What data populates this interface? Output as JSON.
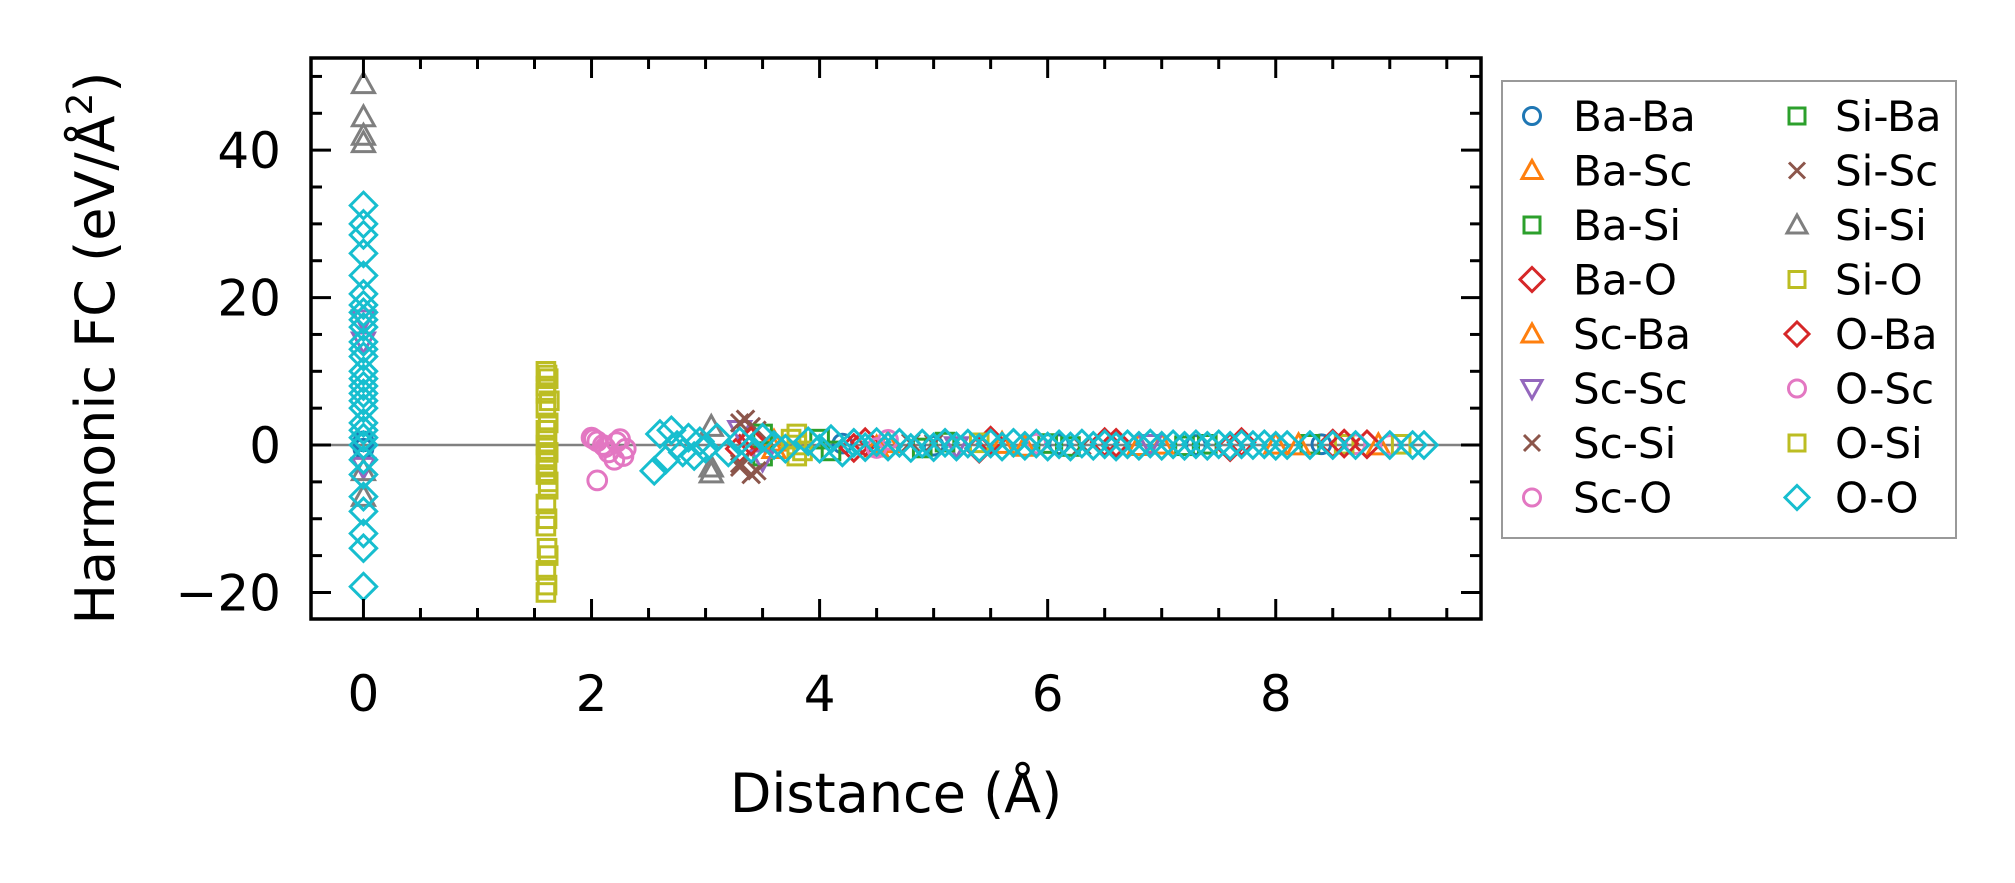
{
  "chart_data": {
    "type": "scatter",
    "title": "",
    "xlabel": "Distance (Å)",
    "ylabel": "Harmonic FC (eV/Å²)",
    "ylabel_parts": {
      "main": "Harmonic FC (eV/Å",
      "sup": "2",
      "close": ")"
    },
    "xlim": [
      -0.46,
      9.8
    ],
    "ylim": [
      -23.6,
      52.5
    ],
    "xticks": [
      0,
      2,
      4,
      6,
      8
    ],
    "xtick_labels": [
      "0",
      "2",
      "4",
      "6",
      "8"
    ],
    "yticks": [
      -20,
      0,
      20,
      40
    ],
    "ytick_labels": [
      "−20",
      "0",
      "20",
      "40"
    ],
    "x_minor_step": 0.5,
    "y_minor_step": 5,
    "grid": false,
    "zero_line": true,
    "legend_position": "outside-right",
    "series": [
      {
        "name": "Ba-Ba",
        "marker": "circle",
        "color": "#1f77b4",
        "points": [
          [
            0,
            0.5
          ],
          [
            0,
            -0.5
          ],
          [
            4.2,
            0.2
          ],
          [
            5.0,
            -0.1
          ],
          [
            6.1,
            0.1
          ],
          [
            7.3,
            0.0
          ],
          [
            8.4,
            0.1
          ]
        ]
      },
      {
        "name": "Ba-Sc",
        "marker": "triangle-up",
        "color": "#ff7f0e",
        "points": [
          [
            3.6,
            0.5
          ],
          [
            4.5,
            -0.3
          ],
          [
            5.6,
            0.2
          ],
          [
            6.8,
            -0.1
          ],
          [
            8.0,
            0.1
          ],
          [
            8.9,
            0.0
          ]
        ]
      },
      {
        "name": "Ba-Si",
        "marker": "square",
        "color": "#2ca02c",
        "points": [
          [
            3.5,
            -1.5
          ],
          [
            4.0,
            0.8
          ],
          [
            4.9,
            -0.4
          ],
          [
            6.0,
            0.2
          ],
          [
            7.2,
            -0.1
          ],
          [
            8.3,
            0.1
          ]
        ]
      },
      {
        "name": "Ba-O",
        "marker": "diamond",
        "color": "#d62728",
        "points": [
          [
            3.3,
            -0.5
          ],
          [
            4.4,
            0.4
          ],
          [
            5.5,
            0.6
          ],
          [
            6.6,
            0.3
          ],
          [
            7.7,
            0.4
          ],
          [
            8.5,
            0.2
          ],
          [
            8.8,
            0.1
          ]
        ]
      },
      {
        "name": "Sc-Ba",
        "marker": "triangle-up",
        "color": "#ff7f0e",
        "points": [
          [
            3.6,
            -0.5
          ],
          [
            4.6,
            0.3
          ],
          [
            5.8,
            -0.2
          ],
          [
            7.0,
            0.1
          ],
          [
            8.2,
            0.0
          ]
        ]
      },
      {
        "name": "Sc-Sc",
        "marker": "triangle-down",
        "color": "#9467bd",
        "points": [
          [
            0,
            14
          ],
          [
            0,
            17
          ],
          [
            0,
            -3
          ],
          [
            3.5,
            -2
          ],
          [
            3.3,
            2
          ],
          [
            5.2,
            -0.2
          ],
          [
            6.9,
            0.1
          ]
        ]
      },
      {
        "name": "Sc-Si",
        "marker": "x",
        "color": "#8c564b",
        "points": [
          [
            3.3,
            3
          ],
          [
            3.4,
            2.5
          ],
          [
            3.3,
            -3
          ],
          [
            3.4,
            -4
          ],
          [
            4.8,
            0.3
          ],
          [
            6.3,
            -0.1
          ]
        ]
      },
      {
        "name": "Sc-O",
        "marker": "circle",
        "color": "#e377c2",
        "points": [
          [
            2.0,
            1
          ],
          [
            2.05,
            0.5
          ],
          [
            2.1,
            0
          ],
          [
            2.15,
            -1
          ],
          [
            2.2,
            -2
          ],
          [
            2.25,
            0.8
          ],
          [
            2.3,
            -0.5
          ],
          [
            2.05,
            -4.8
          ],
          [
            4.6,
            0.7
          ],
          [
            5.9,
            0.2
          ],
          [
            8.7,
            0.1
          ],
          [
            9.0,
            0.0
          ]
        ]
      },
      {
        "name": "Si-Ba",
        "marker": "square",
        "color": "#2ca02c",
        "points": [
          [
            3.5,
            1.5
          ],
          [
            4.1,
            -0.8
          ],
          [
            5.1,
            0.4
          ],
          [
            6.2,
            -0.2
          ],
          [
            7.4,
            0.1
          ]
        ]
      },
      {
        "name": "Si-Sc",
        "marker": "x",
        "color": "#8c564b",
        "points": [
          [
            3.35,
            3.5
          ],
          [
            3.45,
            2
          ],
          [
            3.3,
            -2.5
          ],
          [
            3.45,
            -3.5
          ],
          [
            5.0,
            0.2
          ]
        ]
      },
      {
        "name": "Si-Si",
        "marker": "triangle-up",
        "color": "#7f7f7f",
        "points": [
          [
            0,
            49
          ],
          [
            0,
            44.5
          ],
          [
            0,
            42
          ],
          [
            0,
            41
          ],
          [
            0,
            -3.5
          ],
          [
            0,
            -7
          ],
          [
            3.05,
            2.5
          ],
          [
            3.05,
            -3
          ],
          [
            3.05,
            -3.8
          ]
        ]
      },
      {
        "name": "Si-O",
        "marker": "square",
        "color": "#bcbd22",
        "points": [
          [
            1.6,
            10
          ],
          [
            1.62,
            9
          ],
          [
            1.6,
            8
          ],
          [
            1.63,
            6
          ],
          [
            1.6,
            5
          ],
          [
            1.62,
            3
          ],
          [
            1.6,
            2
          ],
          [
            1.61,
            1
          ],
          [
            1.6,
            0
          ],
          [
            1.62,
            -1
          ],
          [
            1.6,
            -2
          ],
          [
            1.61,
            -3
          ],
          [
            1.6,
            -4
          ],
          [
            1.62,
            -6
          ],
          [
            1.6,
            -8
          ],
          [
            1.61,
            -10
          ],
          [
            1.6,
            -11
          ],
          [
            1.62,
            -15
          ],
          [
            1.6,
            -17
          ],
          [
            1.61,
            -19
          ],
          [
            1.6,
            -20
          ],
          [
            3.8,
            1.5
          ],
          [
            3.8,
            0
          ],
          [
            3.8,
            -1.5
          ],
          [
            5.4,
            0.3
          ],
          [
            8.6,
            0.1
          ]
        ]
      },
      {
        "name": "O-Ba",
        "marker": "diamond",
        "color": "#d62728",
        "points": [
          [
            3.4,
            0.5
          ],
          [
            4.3,
            -0.4
          ],
          [
            5.4,
            -0.5
          ],
          [
            6.5,
            0.4
          ],
          [
            7.6,
            -0.3
          ],
          [
            8.6,
            0.2
          ]
        ]
      },
      {
        "name": "O-Sc",
        "marker": "circle",
        "color": "#e377c2",
        "points": [
          [
            2.02,
            0.8
          ],
          [
            2.12,
            -0.3
          ],
          [
            2.22,
            0.4
          ],
          [
            2.28,
            -1.5
          ],
          [
            4.5,
            -0.4
          ]
        ]
      },
      {
        "name": "O-Si",
        "marker": "square",
        "color": "#bcbd22",
        "points": [
          [
            1.61,
            9.5
          ],
          [
            1.6,
            7
          ],
          [
            1.62,
            -5
          ],
          [
            1.61,
            -14
          ],
          [
            3.75,
            0.8
          ],
          [
            3.85,
            -0.8
          ],
          [
            9.1,
            0.1
          ]
        ]
      },
      {
        "name": "O-O",
        "marker": "diamond",
        "color": "#17becf",
        "points": [
          [
            0,
            32.5
          ],
          [
            0,
            30
          ],
          [
            0,
            28.5
          ],
          [
            0,
            26
          ],
          [
            0,
            23
          ],
          [
            0,
            20.5
          ],
          [
            0,
            19
          ],
          [
            0,
            18
          ],
          [
            0,
            17
          ],
          [
            0,
            16
          ],
          [
            0,
            14
          ],
          [
            0,
            13
          ],
          [
            0,
            12
          ],
          [
            0,
            10
          ],
          [
            0,
            9
          ],
          [
            0,
            8
          ],
          [
            0,
            7
          ],
          [
            0,
            6
          ],
          [
            0,
            5
          ],
          [
            0,
            3
          ],
          [
            0,
            2
          ],
          [
            0,
            1
          ],
          [
            0,
            0
          ],
          [
            0,
            -2
          ],
          [
            0,
            -4
          ],
          [
            0,
            -7
          ],
          [
            0,
            -9
          ],
          [
            0,
            -12
          ],
          [
            0,
            -14
          ],
          [
            0,
            -19.2
          ],
          [
            2.55,
            -3.5
          ],
          [
            2.6,
            1.5
          ],
          [
            2.65,
            -2
          ],
          [
            2.7,
            2
          ],
          [
            2.75,
            0
          ],
          [
            2.8,
            -1
          ],
          [
            2.85,
            1
          ],
          [
            2.9,
            -1.5
          ],
          [
            2.95,
            0.5
          ],
          [
            3.0,
            -0.5
          ],
          [
            3.1,
            1
          ],
          [
            3.2,
            -1
          ],
          [
            3.3,
            0.5
          ],
          [
            3.4,
            -0.5
          ],
          [
            3.5,
            1
          ],
          [
            3.6,
            0
          ],
          [
            3.7,
            -0.5
          ],
          [
            3.9,
            0.5
          ],
          [
            4.0,
            -0.5
          ],
          [
            4.1,
            0.8
          ],
          [
            4.2,
            -1
          ],
          [
            4.3,
            0.3
          ],
          [
            4.4,
            -0.3
          ],
          [
            4.5,
            0.4
          ],
          [
            4.6,
            -0.2
          ],
          [
            4.7,
            0.3
          ],
          [
            4.8,
            -0.4
          ],
          [
            4.9,
            0.2
          ],
          [
            5.0,
            -0.3
          ],
          [
            5.1,
            0.3
          ],
          [
            5.2,
            -0.2
          ],
          [
            5.3,
            0.2
          ],
          [
            5.4,
            -0.4
          ],
          [
            5.5,
            0.2
          ],
          [
            5.6,
            -0.2
          ],
          [
            5.7,
            0.3
          ],
          [
            5.8,
            -0.1
          ],
          [
            5.9,
            0.2
          ],
          [
            6.0,
            -0.2
          ],
          [
            6.1,
            0.1
          ],
          [
            6.2,
            -0.2
          ],
          [
            6.3,
            0.2
          ],
          [
            6.4,
            -0.1
          ],
          [
            6.5,
            0.1
          ],
          [
            6.6,
            -0.2
          ],
          [
            6.7,
            0.1
          ],
          [
            6.8,
            -0.1
          ],
          [
            6.9,
            0.2
          ],
          [
            7.0,
            -0.1
          ],
          [
            7.1,
            0.1
          ],
          [
            7.2,
            -0.1
          ],
          [
            7.3,
            0.1
          ],
          [
            7.4,
            -0.1
          ],
          [
            7.5,
            0.1
          ],
          [
            7.6,
            -0.1
          ],
          [
            7.7,
            0.1
          ],
          [
            7.8,
            0.0
          ],
          [
            7.9,
            0.1
          ],
          [
            8.0,
            -0.1
          ],
          [
            8.1,
            0.0
          ],
          [
            8.3,
            0.0
          ],
          [
            8.5,
            0.0
          ],
          [
            8.7,
            0.0
          ],
          [
            9.0,
            0.0
          ],
          [
            9.2,
            0.0
          ],
          [
            9.3,
            0.0
          ]
        ]
      }
    ]
  }
}
